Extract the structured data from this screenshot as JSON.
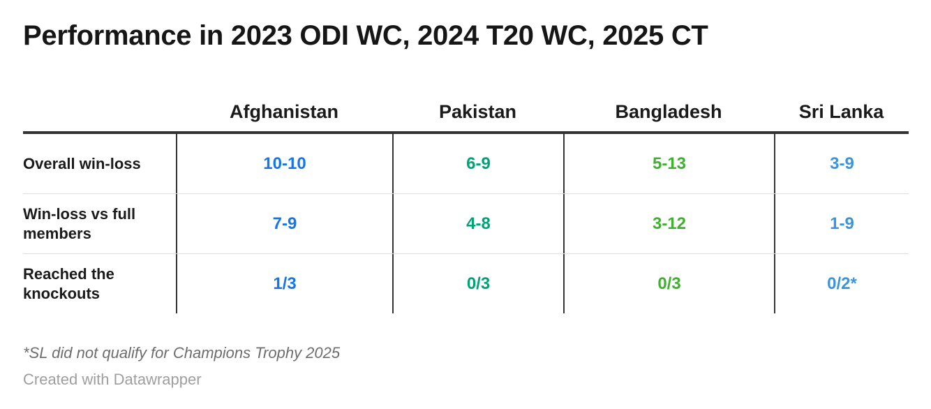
{
  "chart_data": {
    "type": "table",
    "title": "Performance in 2023 ODI WC, 2024 T20 WC, 2025 CT",
    "columns": [
      {
        "label": "Afghanistan",
        "value_color": "#1576eb"
      },
      {
        "label": "Pakistan",
        "value_color": "#00a378"
      },
      {
        "label": "Bangladesh",
        "value_color": "#3eb22e"
      },
      {
        "label": "Sri Lanka",
        "value_color": "#3c95d9"
      }
    ],
    "rows": [
      {
        "label": "Overall win-loss",
        "values": [
          "10-10",
          "6-9",
          "5-13",
          "3-9"
        ]
      },
      {
        "label": "Win-loss vs full members",
        "values": [
          "7-9",
          "4-8",
          "3-12",
          "1-9"
        ]
      },
      {
        "label": "Reached the knockouts",
        "values": [
          "1/3",
          "0/3",
          "0/3",
          "0/2*"
        ]
      }
    ],
    "footnote": "*SL did not qualify for Champions Trophy 2025",
    "layout": {
      "header_rule_color": "#333333",
      "column_divider_color": "#333333",
      "row_divider_color": "#dedede"
    }
  },
  "credit": "Created with Datawrapper"
}
